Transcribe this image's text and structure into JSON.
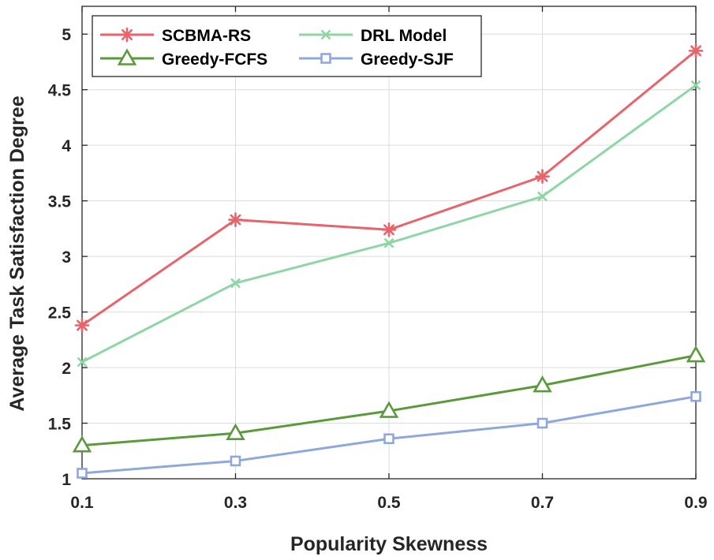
{
  "chart_data": {
    "type": "line",
    "title": "",
    "xlabel": "Popularity Skewness",
    "ylabel": "Average Task Satisfaction Degree",
    "x": [
      0.1,
      0.3,
      0.5,
      0.7,
      0.9
    ],
    "x_tick_labels": [
      "0.1",
      "0.3",
      "0.5",
      "0.7",
      "0.9"
    ],
    "xlim": [
      0.1,
      0.9
    ],
    "ylim": [
      1,
      5.25
    ],
    "y_ticks": [
      1,
      1.5,
      2,
      2.5,
      3,
      3.5,
      4,
      4.5,
      5
    ],
    "y_tick_labels": [
      "1",
      "1.5",
      "2",
      "2.5",
      "3",
      "3.5",
      "4",
      "4.5",
      "5"
    ],
    "grid": true,
    "legend_position": "top-left",
    "series": [
      {
        "name": "SCBMA-RS",
        "values": [
          2.38,
          3.33,
          3.24,
          3.72,
          4.85
        ],
        "color": "#e8646a",
        "marker": "asterisk"
      },
      {
        "name": "DRL Model",
        "values": [
          2.05,
          2.76,
          3.12,
          3.54,
          4.54
        ],
        "color": "#8fd6a6",
        "marker": "x"
      },
      {
        "name": "Greedy-FCFS",
        "values": [
          1.3,
          1.41,
          1.61,
          1.84,
          2.11
        ],
        "color": "#5a9a3a",
        "marker": "triangle"
      },
      {
        "name": "Greedy-SJF",
        "values": [
          1.05,
          1.16,
          1.36,
          1.5,
          1.74
        ],
        "color": "#8fa8dc",
        "marker": "square"
      }
    ]
  }
}
